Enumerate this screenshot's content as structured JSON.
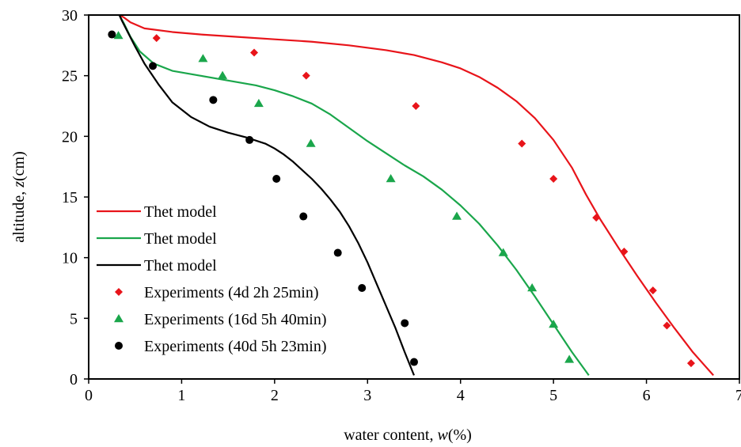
{
  "chart_data": {
    "type": "line",
    "xlabel_prefix": "water content, ",
    "xlabel_var": "w",
    "xlabel_suffix": "(%)",
    "ylabel_prefix": "altitude, ",
    "ylabel_var": "z",
    "ylabel_suffix": "(cm)",
    "xlim": [
      0,
      7
    ],
    "ylim": [
      0,
      30
    ],
    "xticks": [
      "0",
      "1",
      "2",
      "3",
      "4",
      "5",
      "6",
      "7"
    ],
    "yticks": [
      "0",
      "5",
      "10",
      "15",
      "20",
      "25",
      "30"
    ],
    "grid": false,
    "legend_position": "bottom-left",
    "series": [
      {
        "name": "Thet model",
        "kind": "line",
        "color": "#e8141a",
        "x": [
          6.72,
          6.5,
          6.3,
          6.1,
          5.9,
          5.7,
          5.5,
          5.35,
          5.2,
          5.0,
          4.8,
          4.6,
          4.4,
          4.2,
          4.0,
          3.8,
          3.5,
          3.2,
          2.8,
          2.4,
          2.0,
          1.6,
          1.2,
          0.9,
          0.6,
          0.45,
          0.38,
          0.33
        ],
        "y": [
          0.3,
          2.2,
          4.2,
          6.3,
          8.5,
          10.8,
          13.2,
          15.2,
          17.4,
          19.7,
          21.5,
          22.9,
          24.0,
          24.9,
          25.6,
          26.1,
          26.7,
          27.1,
          27.5,
          27.8,
          28.0,
          28.2,
          28.4,
          28.6,
          28.9,
          29.4,
          29.8,
          30.0
        ]
      },
      {
        "name": "Thet model",
        "kind": "line",
        "color": "#1aa64b",
        "x": [
          5.38,
          5.2,
          5.0,
          4.8,
          4.6,
          4.4,
          4.2,
          4.0,
          3.8,
          3.6,
          3.4,
          3.2,
          3.0,
          2.8,
          2.6,
          2.4,
          2.2,
          2.0,
          1.8,
          1.5,
          1.2,
          0.9,
          0.7,
          0.55,
          0.45,
          0.38,
          0.33
        ],
        "y": [
          0.3,
          2.2,
          4.5,
          6.8,
          9.0,
          11.0,
          12.8,
          14.3,
          15.6,
          16.7,
          17.6,
          18.6,
          19.6,
          20.7,
          21.8,
          22.7,
          23.3,
          23.8,
          24.2,
          24.6,
          25.0,
          25.4,
          26.0,
          27.0,
          28.2,
          29.3,
          30.0
        ]
      },
      {
        "name": "Thet model",
        "kind": "line",
        "color": "#000000",
        "x": [
          3.5,
          3.4,
          3.3,
          3.2,
          3.1,
          3.0,
          2.9,
          2.8,
          2.7,
          2.6,
          2.5,
          2.4,
          2.3,
          2.2,
          2.1,
          2.0,
          1.9,
          1.7,
          1.5,
          1.3,
          1.1,
          0.9,
          0.75,
          0.6,
          0.5,
          0.42,
          0.36,
          0.33
        ],
        "y": [
          0.3,
          2.2,
          4.2,
          6.0,
          7.8,
          9.6,
          11.2,
          12.6,
          13.8,
          14.8,
          15.7,
          16.5,
          17.2,
          17.9,
          18.5,
          19.0,
          19.4,
          19.9,
          20.3,
          20.8,
          21.6,
          22.8,
          24.3,
          26.0,
          27.4,
          28.6,
          29.5,
          30.0
        ]
      },
      {
        "name": "Experiments (4d 2h 25min)",
        "kind": "scatter",
        "marker": "diamond",
        "color": "#e8141a",
        "x": [
          0.73,
          1.78,
          2.34,
          3.52,
          4.66,
          5.0,
          5.46,
          5.76,
          6.07,
          6.22,
          6.48
        ],
        "y": [
          28.1,
          26.9,
          25.0,
          22.5,
          19.4,
          16.5,
          13.3,
          10.5,
          7.3,
          4.4,
          1.3
        ]
      },
      {
        "name": "Experiments (16d 5h 40min)",
        "kind": "scatter",
        "marker": "triangle",
        "color": "#1aa64b",
        "x": [
          0.32,
          1.23,
          1.44,
          1.83,
          2.39,
          3.25,
          3.96,
          4.46,
          4.77,
          5.0,
          5.17
        ],
        "y": [
          28.3,
          26.4,
          25.0,
          22.7,
          19.4,
          16.5,
          13.4,
          10.4,
          7.5,
          4.5,
          1.6
        ]
      },
      {
        "name": "Experiments (40d 5h 23min)",
        "kind": "scatter",
        "marker": "circle",
        "color": "#000000",
        "x": [
          0.25,
          0.69,
          1.34,
          1.73,
          2.02,
          2.31,
          2.68,
          2.94,
          3.4,
          3.5
        ],
        "y": [
          28.4,
          25.8,
          23.0,
          19.7,
          16.5,
          13.4,
          10.4,
          7.5,
          4.6,
          1.4
        ]
      }
    ]
  }
}
